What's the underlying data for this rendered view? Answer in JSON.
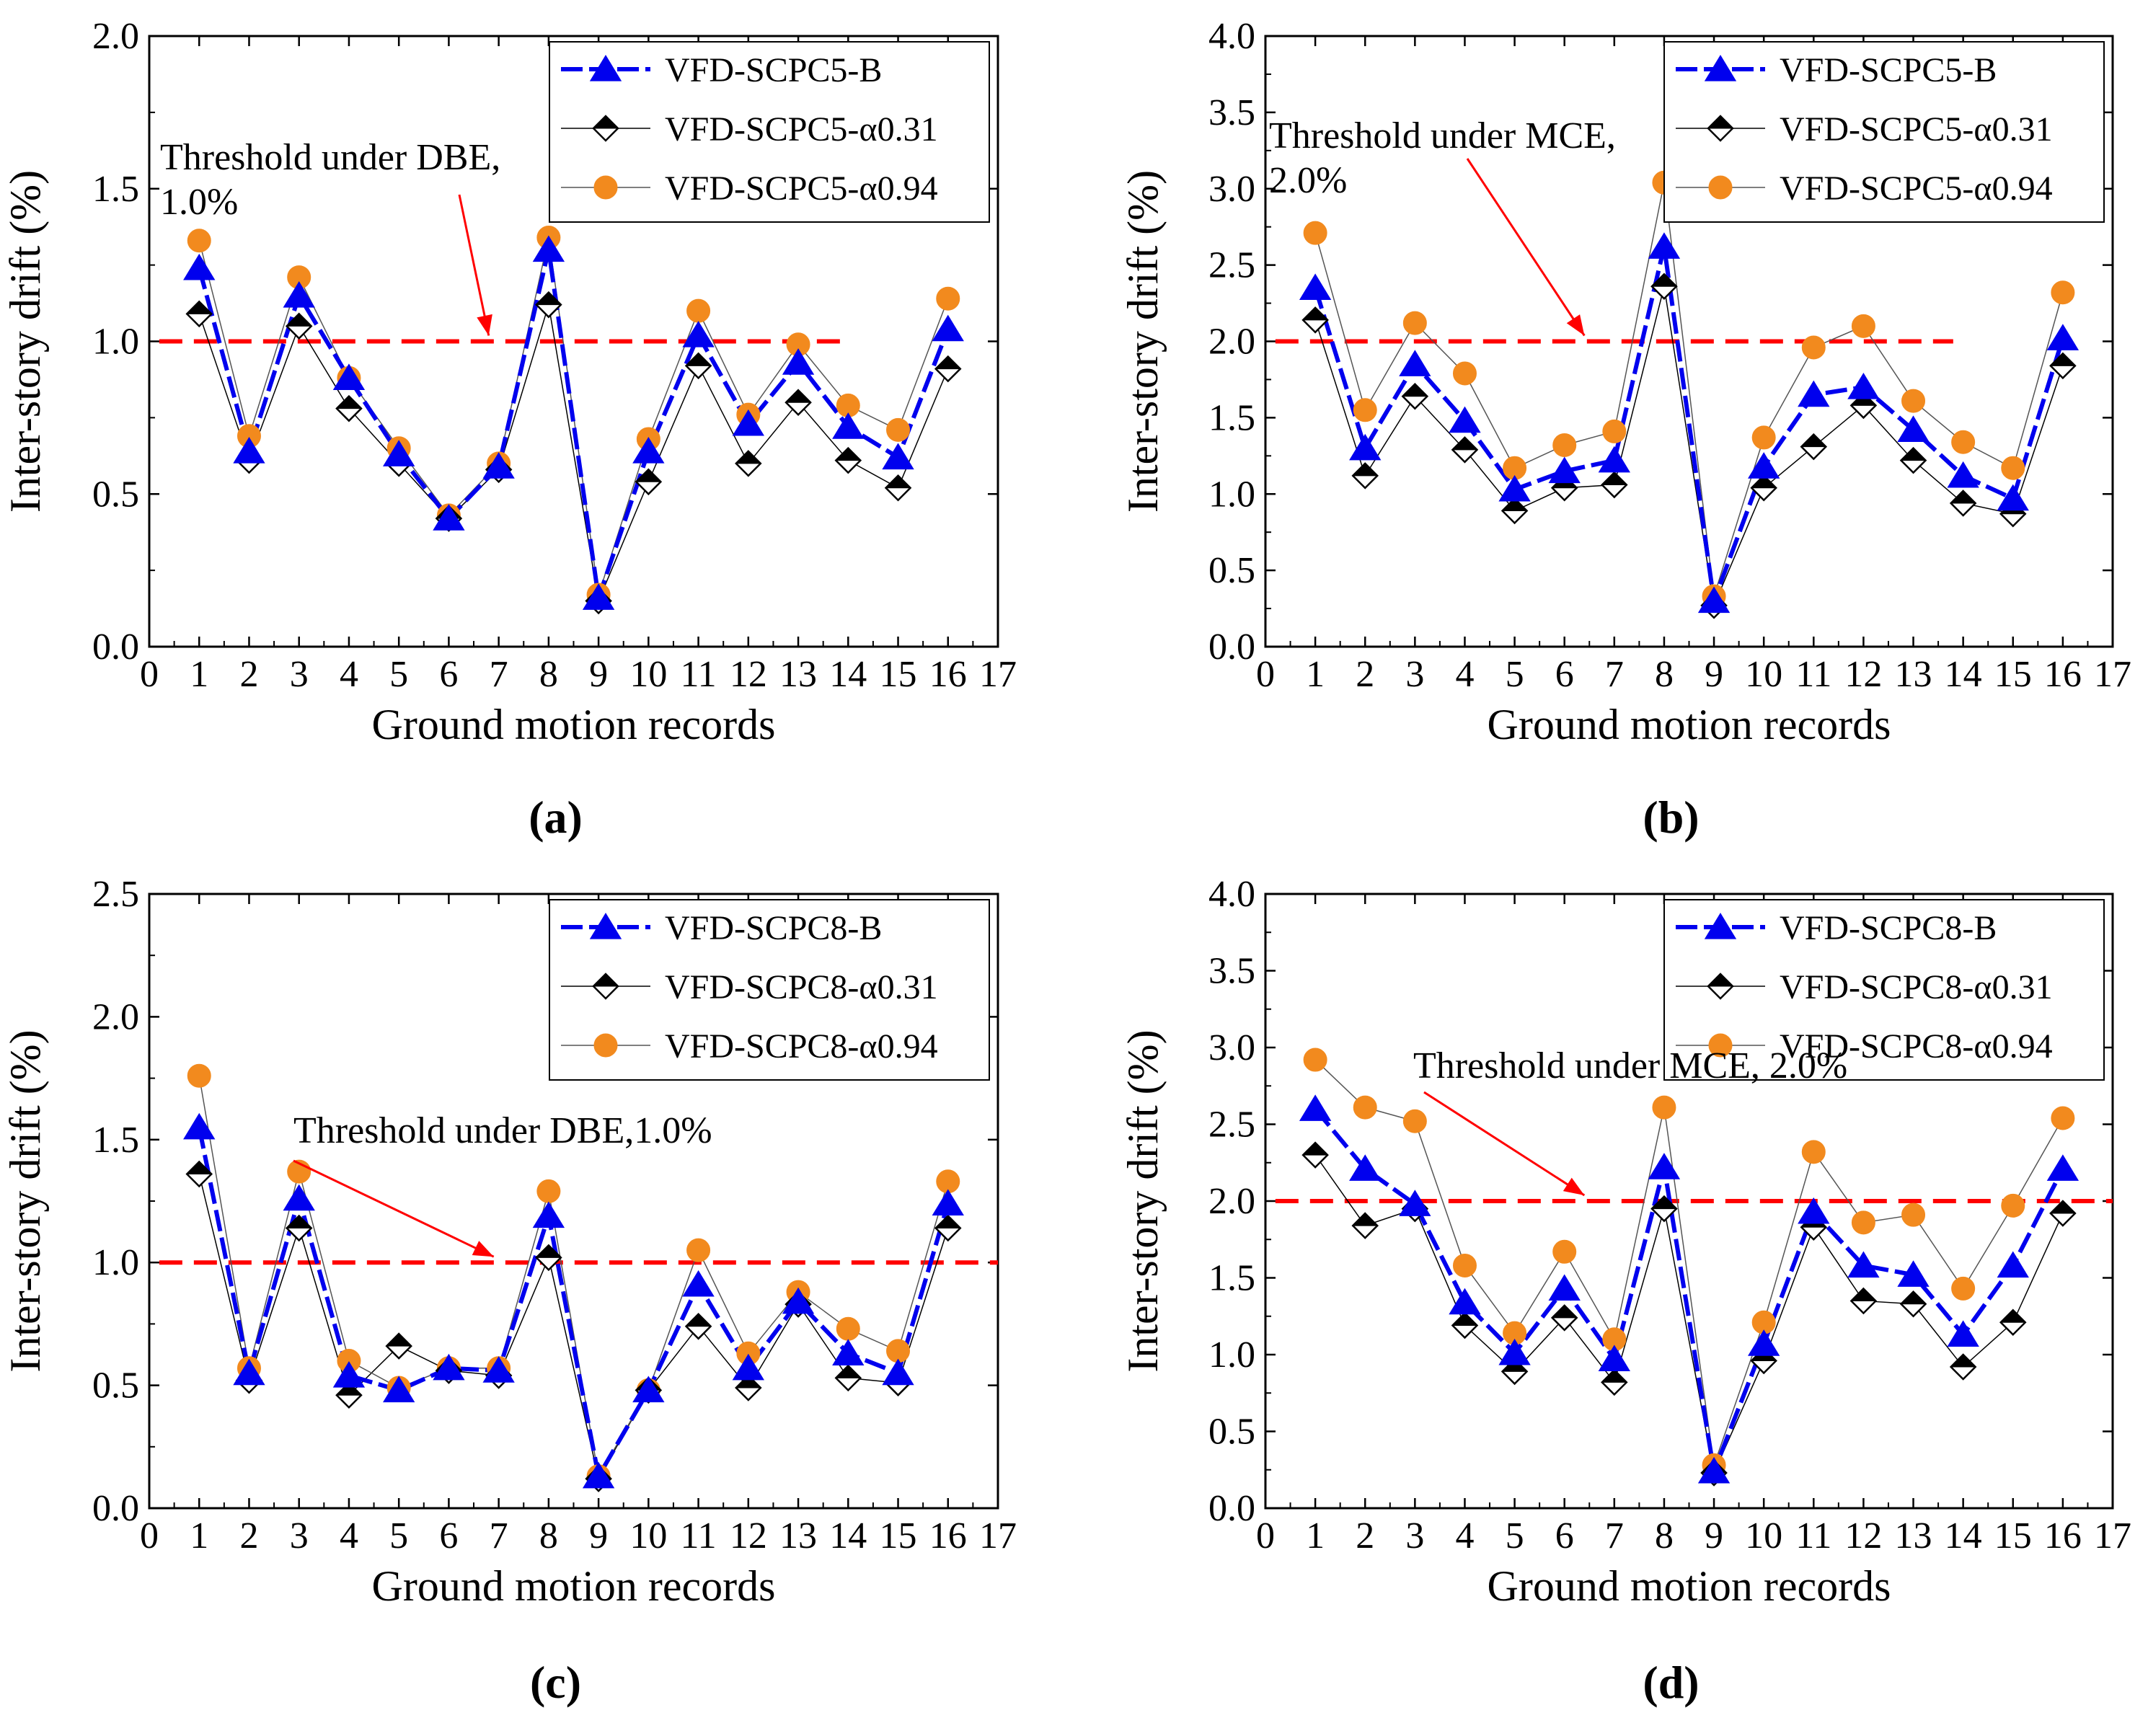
{
  "figure_labels": [
    "(a)",
    "(b)",
    "(c)",
    "(d)"
  ],
  "colors": {
    "series_b": "#0000ee",
    "series_a031": "#000000",
    "series_a094": "#f28a1e",
    "threshold": "#ff0000",
    "axis": "#000000"
  },
  "chart_data": [
    {
      "panel": "(a)",
      "type": "line",
      "xlabel": "Ground motion records",
      "ylabel": "Inter-story drift (%)",
      "xlim": [
        0,
        17
      ],
      "ylim": [
        0,
        2.0
      ],
      "yticks": [
        "0.0",
        "0.5",
        "1.0",
        "1.5",
        "2.0"
      ],
      "xticks": [
        "0",
        "1",
        "2",
        "3",
        "4",
        "5",
        "6",
        "7",
        "8",
        "9",
        "10",
        "11",
        "12",
        "13",
        "14",
        "15",
        "16",
        "17"
      ],
      "x": [
        1,
        2,
        3,
        4,
        5,
        6,
        7,
        8,
        9,
        10,
        11,
        12,
        13,
        14,
        15,
        16
      ],
      "threshold": {
        "value": 1.0,
        "x_range": [
          0.2,
          14.0
        ]
      },
      "annotation": {
        "lines": [
          "Threshold under DBE,",
          "1.0%"
        ],
        "arrow_to_x": 6.8
      },
      "legend": {
        "position": "top-right"
      },
      "series": [
        {
          "name": "VFD-SCPC5-B",
          "marker": "triangle",
          "values": [
            1.24,
            0.64,
            1.15,
            0.88,
            0.63,
            0.42,
            0.59,
            1.3,
            0.16,
            0.64,
            1.02,
            0.73,
            0.93,
            0.72,
            0.62,
            1.04
          ]
        },
        {
          "name": "VFD-SCPC5-α0.31",
          "marker": "diamond",
          "values": [
            1.09,
            0.61,
            1.05,
            0.78,
            0.6,
            0.42,
            0.58,
            1.12,
            0.15,
            0.54,
            0.92,
            0.6,
            0.8,
            0.61,
            0.52,
            0.91
          ]
        },
        {
          "name": "VFD-SCPC5-α0.94",
          "marker": "circle",
          "values": [
            1.33,
            0.69,
            1.21,
            0.88,
            0.65,
            0.43,
            0.6,
            1.34,
            0.17,
            0.68,
            1.1,
            0.76,
            0.99,
            0.79,
            0.71,
            1.14
          ]
        }
      ]
    },
    {
      "panel": "(b)",
      "type": "line",
      "xlabel": "Ground motion records",
      "ylabel": "Inter-story drift (%)",
      "xlim": [
        0,
        17
      ],
      "ylim": [
        0,
        4.0
      ],
      "yticks": [
        "0.0",
        "0.5",
        "1.0",
        "1.5",
        "2.0",
        "2.5",
        "3.0",
        "3.5",
        "4.0"
      ],
      "xticks": [
        "0",
        "1",
        "2",
        "3",
        "4",
        "5",
        "6",
        "7",
        "8",
        "9",
        "10",
        "11",
        "12",
        "13",
        "14",
        "15",
        "16",
        "17"
      ],
      "x": [
        1,
        2,
        3,
        4,
        5,
        6,
        7,
        8,
        9,
        10,
        11,
        12,
        13,
        14,
        15,
        16
      ],
      "threshold": {
        "value": 2.0,
        "x_range": [
          0.2,
          13.8
        ]
      },
      "annotation": {
        "lines": [
          "Threshold under MCE,",
          "2.0%"
        ],
        "arrow_to_x": 6.4
      },
      "legend": {
        "position": "top-right"
      },
      "series": [
        {
          "name": "VFD-SCPC5-B",
          "marker": "triangle",
          "values": [
            2.35,
            1.3,
            1.85,
            1.48,
            1.03,
            1.15,
            1.22,
            2.62,
            0.3,
            1.18,
            1.65,
            1.7,
            1.42,
            1.12,
            0.97,
            2.02
          ]
        },
        {
          "name": "VFD-SCPC5-α0.31",
          "marker": "diamond",
          "values": [
            2.14,
            1.12,
            1.64,
            1.29,
            0.89,
            1.04,
            1.06,
            2.36,
            0.27,
            1.04,
            1.31,
            1.58,
            1.22,
            0.94,
            0.87,
            1.84
          ]
        },
        {
          "name": "VFD-SCPC5-α0.94",
          "marker": "circle",
          "values": [
            2.71,
            1.55,
            2.12,
            1.79,
            1.17,
            1.32,
            1.41,
            3.04,
            0.33,
            1.37,
            1.96,
            2.1,
            1.61,
            1.34,
            1.17,
            2.32
          ]
        }
      ]
    },
    {
      "panel": "(c)",
      "type": "line",
      "xlabel": "Ground motion records",
      "ylabel": "Inter-story drift (%)",
      "xlim": [
        0,
        17
      ],
      "ylim": [
        0,
        2.5
      ],
      "yticks": [
        "0.0",
        "0.5",
        "1.0",
        "1.5",
        "2.0",
        "2.5"
      ],
      "xticks": [
        "0",
        "1",
        "2",
        "3",
        "4",
        "5",
        "6",
        "7",
        "8",
        "9",
        "10",
        "11",
        "12",
        "13",
        "14",
        "15",
        "16",
        "17"
      ],
      "x": [
        1,
        2,
        3,
        4,
        5,
        6,
        7,
        8,
        9,
        10,
        11,
        12,
        13,
        14,
        15,
        16
      ],
      "threshold": {
        "value": 1.0,
        "x_range": [
          0.2,
          17.0
        ]
      },
      "annotation": {
        "lines": [
          "Threshold under DBE,1.0%"
        ],
        "arrow_to_x": 6.9
      },
      "legend": {
        "position": "top-right"
      },
      "series": [
        {
          "name": "VFD-SCPC8-B",
          "marker": "triangle",
          "values": [
            1.55,
            0.55,
            1.26,
            0.54,
            0.48,
            0.57,
            0.56,
            1.19,
            0.13,
            0.48,
            0.91,
            0.57,
            0.84,
            0.63,
            0.55,
            1.24
          ]
        },
        {
          "name": "VFD-SCPC8-α0.31",
          "marker": "diamond",
          "values": [
            1.36,
            0.52,
            1.14,
            0.46,
            0.66,
            0.56,
            0.54,
            1.02,
            0.12,
            0.48,
            0.74,
            0.49,
            0.83,
            0.53,
            0.51,
            1.14
          ]
        },
        {
          "name": "VFD-SCPC8-α0.94",
          "marker": "circle",
          "values": [
            1.76,
            0.57,
            1.37,
            0.6,
            0.49,
            0.57,
            0.57,
            1.29,
            0.13,
            0.48,
            1.05,
            0.63,
            0.88,
            0.73,
            0.64,
            1.33
          ]
        }
      ]
    },
    {
      "panel": "(d)",
      "type": "line",
      "xlabel": "Ground motion records",
      "ylabel": "Inter-story drift (%)",
      "xlim": [
        0,
        17
      ],
      "ylim": [
        0,
        4.0
      ],
      "yticks": [
        "0.0",
        "0.5",
        "1.0",
        "1.5",
        "2.0",
        "2.5",
        "3.0",
        "3.5",
        "4.0"
      ],
      "xticks": [
        "0",
        "1",
        "2",
        "3",
        "4",
        "5",
        "6",
        "7",
        "8",
        "9",
        "10",
        "11",
        "12",
        "13",
        "14",
        "15",
        "16",
        "17"
      ],
      "x": [
        1,
        2,
        3,
        4,
        5,
        6,
        7,
        8,
        9,
        10,
        11,
        12,
        13,
        14,
        15,
        16
      ],
      "threshold": {
        "value": 2.0,
        "x_range": [
          0.2,
          17.0
        ]
      },
      "annotation": {
        "lines": [
          "Threshold under MCE, 2.0%"
        ],
        "arrow_to_x": 6.4
      },
      "legend": {
        "position": "top-right"
      },
      "series": [
        {
          "name": "VFD-SCPC8-B",
          "marker": "triangle",
          "values": [
            2.6,
            2.21,
            1.98,
            1.34,
            1.01,
            1.43,
            0.97,
            2.22,
            0.24,
            1.07,
            1.93,
            1.58,
            1.52,
            1.13,
            1.58,
            2.21
          ]
        },
        {
          "name": "VFD-SCPC8-α0.31",
          "marker": "diamond",
          "values": [
            2.3,
            1.84,
            1.95,
            1.19,
            0.89,
            1.24,
            0.82,
            1.95,
            0.23,
            0.96,
            1.83,
            1.35,
            1.33,
            0.92,
            1.21,
            1.92
          ]
        },
        {
          "name": "VFD-SCPC8-α0.94",
          "marker": "circle",
          "values": [
            2.92,
            2.61,
            2.52,
            1.58,
            1.14,
            1.67,
            1.1,
            2.61,
            0.28,
            1.21,
            2.32,
            1.86,
            1.91,
            1.43,
            1.97,
            2.54
          ]
        }
      ]
    }
  ]
}
